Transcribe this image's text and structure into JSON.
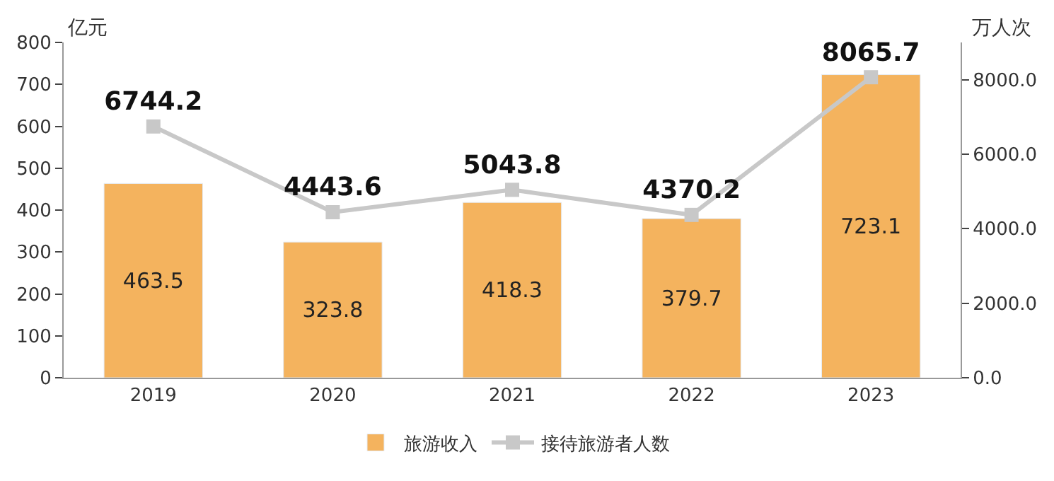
{
  "chart_data": {
    "type": "bar",
    "categories": [
      "2019",
      "2020",
      "2021",
      "2022",
      "2023"
    ],
    "ylabel": "亿元",
    "y2label": "万人次",
    "series": [
      {
        "name": "旅游收入",
        "color": "#f4b35e",
        "values": [
          463.5,
          323.8,
          418.3,
          379.7,
          723.1
        ]
      },
      {
        "name": "接待旅游者人数",
        "type": "line",
        "axis": "y2",
        "color": "#c8c8c8",
        "marker": "square",
        "values": [
          6744.2,
          4443.6,
          5043.8,
          4370.2,
          8065.7
        ]
      }
    ],
    "ylim": [
      0,
      800
    ],
    "yticks": [
      0,
      100,
      200,
      300,
      400,
      500,
      600,
      700,
      800
    ],
    "y2lim": [
      0,
      9000
    ],
    "y2ticks": [
      {
        "value": 0,
        "label": "0.0"
      },
      {
        "value": 2000,
        "label": "2000.0"
      },
      {
        "value": 4000,
        "label": "4000.0"
      },
      {
        "value": 6000,
        "label": "6000.0"
      },
      {
        "value": 8000,
        "label": "8000.0"
      }
    ],
    "data_labels": true,
    "legend": "bottom"
  }
}
